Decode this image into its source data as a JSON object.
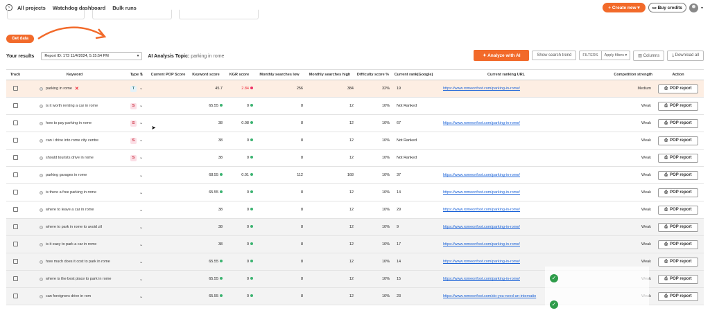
{
  "topbar": {
    "nav": [
      "All projects",
      "Watchdog dashboard",
      "Bulk runs"
    ],
    "create_new": "+ Create new ▾",
    "buy_credits": "Buy credits"
  },
  "get_data": "Get data",
  "results": {
    "label": "Your results",
    "report_id": "Report ID: 173 11/4/2024, 5:15:54 PM",
    "ai_topic_label": "AI Analysis Topic:",
    "ai_topic_value": "parking in rome",
    "analyze_btn": "Analyze with AI",
    "show_trend_btn": "Show search trend",
    "filters_label": "FILTERS",
    "apply_filters": "Apply filters ▾",
    "columns_btn": "Columns",
    "download_btn": "Download all"
  },
  "table": {
    "headers": [
      "Track",
      "Keyword",
      "Type",
      "Current POP Score",
      "Keyword score",
      "KGR score",
      "Monthly searches low",
      "Monthly searches high",
      "Difficulty score %",
      "Current rank(Google)",
      "Current ranking URL",
      "Competition strength",
      "Action"
    ],
    "action_label": "POP report",
    "rows": [
      {
        "keyword": "parking in rome",
        "type": "T",
        "kw_score": "45.7",
        "kgr": "2.84",
        "low": "256",
        "high": "384",
        "diff": "32%",
        "rank": "19",
        "url": "https://www.romeonfoot.com/parking-in-rome/",
        "strength": "Medium",
        "hl": true,
        "x": true,
        "kw_dot": false,
        "kgr_red": true
      },
      {
        "keyword": "is it worth renting a car in rome",
        "type": "S",
        "kw_score": "65.55",
        "kgr": "0",
        "low": "8",
        "high": "12",
        "diff": "10%",
        "rank": "Not Ranked",
        "url": "",
        "strength": "Weak",
        "kw_dot": true
      },
      {
        "keyword": "how to pay parking in rome",
        "type": "S",
        "kw_score": "38",
        "kgr": "0.08",
        "low": "8",
        "high": "12",
        "diff": "10%",
        "rank": "67",
        "url": "https://www.romeonfoot.com/parking-in-rome/",
        "strength": "Weak",
        "kw_dot": false
      },
      {
        "keyword": "can i drive into rome city centre",
        "type": "S",
        "kw_score": "38",
        "kgr": "0",
        "low": "8",
        "high": "12",
        "diff": "10%",
        "rank": "Not Ranked",
        "url": "",
        "strength": "Weak",
        "kw_dot": false
      },
      {
        "keyword": "should tourists drive in rome",
        "type": "S",
        "kw_score": "38",
        "kgr": "0",
        "low": "8",
        "high": "12",
        "diff": "10%",
        "rank": "Not Ranked",
        "url": "",
        "strength": "Weak",
        "kw_dot": false
      },
      {
        "keyword": "parking garages in rome",
        "type": "",
        "kw_score": "68.55",
        "kgr": "0.01",
        "low": "112",
        "high": "168",
        "diff": "10%",
        "rank": "37",
        "url": "https://www.romeonfoot.com/parking-in-rome/",
        "strength": "Weak",
        "kw_dot": true
      },
      {
        "keyword": "is there a free parking in rome",
        "type": "",
        "kw_score": "65.55",
        "kgr": "0",
        "low": "8",
        "high": "12",
        "diff": "10%",
        "rank": "14",
        "url": "https://www.romeonfoot.com/parking-in-rome/",
        "strength": "Weak",
        "kw_dot": true
      },
      {
        "keyword": "where to leave a car in rome",
        "type": "",
        "kw_score": "38",
        "kgr": "0",
        "low": "8",
        "high": "12",
        "diff": "10%",
        "rank": "29",
        "url": "https://www.romeonfoot.com/parking-in-rome/",
        "strength": "Weak",
        "kw_dot": false
      },
      {
        "keyword": "where to park in rome to avoid ztl",
        "type": "",
        "kw_score": "38",
        "kgr": "0",
        "low": "8",
        "high": "12",
        "diff": "10%",
        "rank": "9",
        "url": "https://www.romeonfoot.com/parking-in-rome/",
        "strength": "Weak",
        "kw_dot": false,
        "grey": true
      },
      {
        "keyword": "is it easy to park a car in rome",
        "type": "",
        "kw_score": "38",
        "kgr": "0",
        "low": "8",
        "high": "12",
        "diff": "10%",
        "rank": "17",
        "url": "https://www.romeonfoot.com/parking-in-rome/",
        "strength": "Weak",
        "kw_dot": false,
        "grey": true
      },
      {
        "keyword": "how much does it cost to park in rome",
        "type": "",
        "kw_score": "65.55",
        "kgr": "0",
        "low": "8",
        "high": "12",
        "diff": "10%",
        "rank": "14",
        "url": "https://www.romeonfoot.com/parking-in-rome/",
        "strength": "Weak",
        "kw_dot": true,
        "grey": true
      },
      {
        "keyword": "where is the best place to park in rome",
        "type": "",
        "kw_score": "65.55",
        "kgr": "0",
        "low": "8",
        "high": "12",
        "diff": "10%",
        "rank": "15",
        "url": "https://www.romeonfoot.com/parking-in-rome/",
        "strength": "Weak",
        "kw_dot": true,
        "grey": true
      },
      {
        "keyword": "can foreigners drive in rom",
        "type": "",
        "kw_score": "65.55",
        "kgr": "0",
        "low": "8",
        "high": "12",
        "diff": "10%",
        "rank": "23",
        "url": "https://www.romeonfoot.com/do-you-need-an-internatio",
        "strength": "Weak",
        "kw_dot": true,
        "grey": true
      }
    ]
  },
  "colors": {
    "accent": "#f26a2a",
    "link": "#1a62d8",
    "success": "#3cb371",
    "highlight_row": "#fdeee3"
  }
}
